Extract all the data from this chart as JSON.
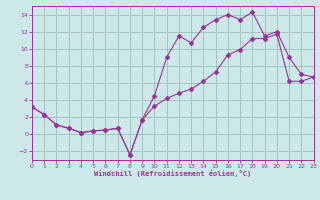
{
  "background_color": "#cce8e8",
  "grid_color": "#9bbebe",
  "line_color": "#993399",
  "xlabel": "Windchill (Refroidissement éolien,°C)",
  "xlim": [
    0,
    23
  ],
  "ylim": [
    -3,
    15
  ],
  "xticks": [
    0,
    1,
    2,
    3,
    4,
    5,
    6,
    7,
    8,
    9,
    10,
    11,
    12,
    13,
    14,
    15,
    16,
    17,
    18,
    19,
    20,
    21,
    22,
    23
  ],
  "yticks": [
    -2,
    0,
    2,
    4,
    6,
    8,
    10,
    12,
    14
  ],
  "curve1_x": [
    0,
    1,
    2,
    3,
    4,
    5,
    6,
    7,
    8,
    9,
    10,
    11,
    12,
    13,
    14,
    15,
    16,
    17,
    18,
    19,
    20,
    21,
    22,
    23
  ],
  "curve1_y": [
    3.2,
    2.3,
    1.1,
    0.7,
    0.2,
    0.4,
    0.5,
    0.7,
    -2.4,
    1.7,
    4.5,
    9.0,
    11.5,
    10.7,
    12.5,
    13.4,
    14.0,
    13.4,
    14.3,
    11.5,
    12.0,
    9.0,
    7.0,
    6.7
  ],
  "curve2_x": [
    0,
    1,
    2,
    3,
    4,
    5,
    6,
    7,
    8,
    9,
    10,
    11,
    12,
    13,
    14,
    15,
    16,
    17,
    18,
    19,
    20,
    21,
    22,
    23
  ],
  "curve2_y": [
    3.2,
    2.3,
    1.1,
    0.7,
    0.2,
    0.4,
    0.5,
    0.7,
    -2.4,
    1.7,
    3.3,
    4.2,
    4.8,
    5.3,
    6.2,
    7.3,
    9.3,
    9.9,
    11.2,
    11.2,
    11.7,
    6.2,
    6.2,
    6.7
  ]
}
